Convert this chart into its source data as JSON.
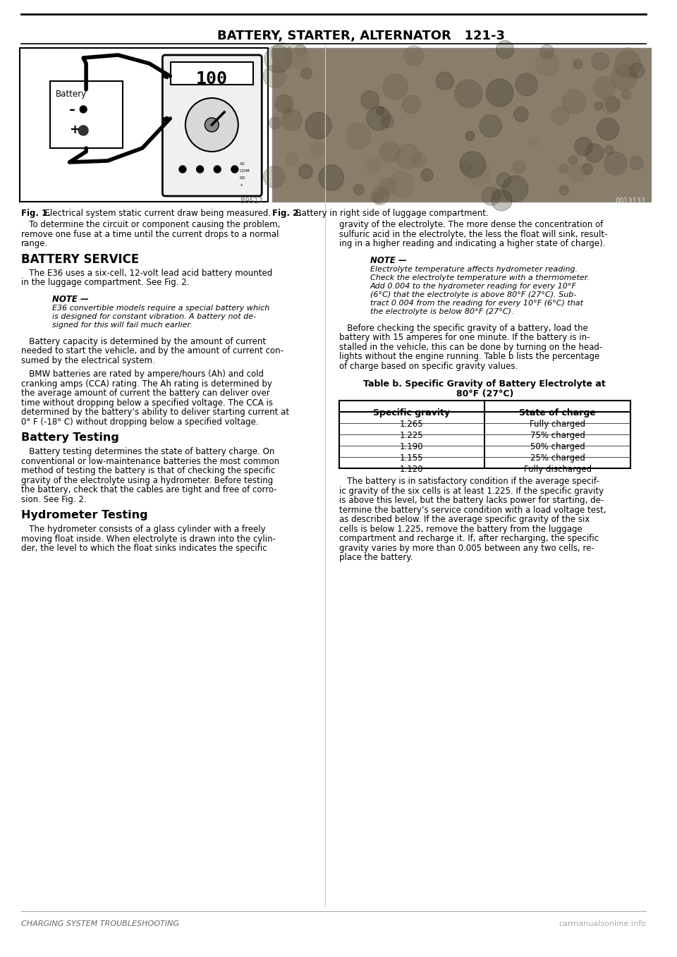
{
  "page_header": "BATTERY, STARTER, ALTERNATOR   121-3",
  "background_color": "#ffffff",
  "fig1_caption_bold": "Fig. 1.",
  "fig1_caption_text": "  Electrical system static current draw being measured.",
  "fig2_caption_bold": "Fig. 2.",
  "fig2_caption_text": "  Battery in right side of luggage compartment.",
  "fig1_code": "B9517",
  "fig2_code": "0013133",
  "para1": "To determine the circuit or component causing the problem, remove one fuse at a time until the current drops to a normal range.",
  "section_battery_service": "BATTERY SERVICE",
  "para2": "The E36 uses a six-cell, 12-volt lead acid battery mounted in the luggage compartment. See Fig. 2.",
  "note1_title": "NOTE —",
  "note1_lines": [
    "E36 convertible models require a special battery which",
    "is designed for constant vibration. A battery not de-",
    "signed for this will fail much earlier."
  ],
  "para3_lines": [
    "Battery capacity is determined by the amount of current",
    "needed to start the vehicle, and by the amount of current con-",
    "sumed by the electrical system."
  ],
  "para4_lines": [
    "BMW batteries are rated by ampere/hours (Ah) and cold",
    "cranking amps (CCA) rating. The Ah rating is determined by",
    "the average amount of current the battery can deliver over",
    "time without dropping below a specified voltage. The CCA is",
    "determined by the battery’s ability to deliver starting current at",
    "0° F (-18° C) without dropping below a specified voltage."
  ],
  "section_battery_testing": "Battery Testing",
  "para5_lines": [
    "Battery testing determines the state of battery charge. On",
    "conventional or low-maintenance batteries the most common",
    "method of testing the battery is that of checking the specific",
    "gravity of the electrolyte using a hydrometer. Before testing",
    "the battery, check that the cables are tight and free of corro-",
    "sion. See Fig. 2."
  ],
  "section_hydrometer": "Hydrometer Testing",
  "para6_left_lines": [
    "The hydrometer consists of a glass cylinder with a freely",
    "moving float inside. When electrolyte is drawn into the cylin-",
    "der, the level to which the float sinks indicates the specific"
  ],
  "para6_right_lines": [
    "gravity of the electrolyte. The more dense the concentration of",
    "sulfuric acid in the electrolyte, the less the float will sink, result-",
    "ing in a higher reading and indicating a higher state of charge)."
  ],
  "note2_title": "NOTE —",
  "note2_lines": [
    "Electrolyte temperature affects hydrometer reading.",
    "Check the electrolyte temperature with a thermometer.",
    "Add 0.004 to the hydrometer reading for every 10°F",
    "(6°C) that the electrolyte is above 80°F (27°C). Sub-",
    "tract 0.004 from the reading for every 10°F (6°C) that",
    "the electrolyte is below 80°F (27°C)."
  ],
  "para7_lines": [
    "Before checking the specific gravity of a battery, load the",
    "battery with 15 amperes for one minute. If the battery is in-",
    "stalled in the vehicle, this can be done by turning on the head-",
    "lights without the engine running. Table b lists the percentage",
    "of charge based on specific gravity values."
  ],
  "table_title_line1": "Table b. Specific Gravity of Battery Electrolyte at",
  "table_title_line2": "80°F (27°C)",
  "table_header": [
    "Specific gravity",
    "State of charge"
  ],
  "table_data": [
    [
      "1.265",
      "Fully charged"
    ],
    [
      "1.225",
      "75% charged"
    ],
    [
      "1.190",
      "50% charged"
    ],
    [
      "1.155",
      "25% charged"
    ],
    [
      "1.120",
      "Fully discharged"
    ]
  ],
  "para8_lines": [
    "The battery is in satisfactory condition if the average specif-",
    "ic gravity of the six cells is at least 1.225. If the specific gravity",
    "is above this level, but the battery lacks power for starting, de-",
    "termine the battery’s service condition with a load voltage test,",
    "as described below. If the average specific gravity of the six",
    "cells is below 1.225, remove the battery from the luggage",
    "compartment and recharge it. If, after recharging, the specific",
    "gravity varies by more than 0.005 between any two cells, re-",
    "place the battery."
  ],
  "footer_left": "CHARGING SYSTEM TROUBLESHOOTING",
  "footer_right": "carmanualsonline.info",
  "text_color": "#000000"
}
